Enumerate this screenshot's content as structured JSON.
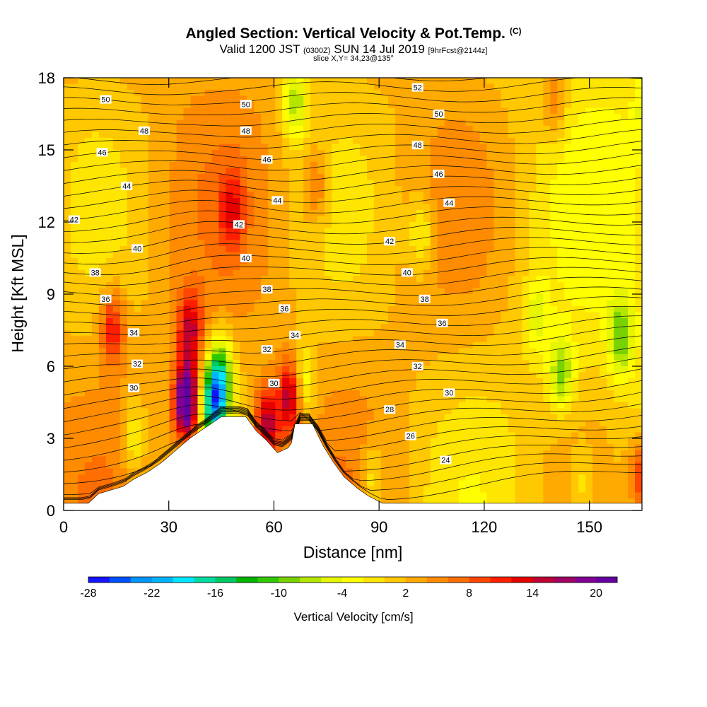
{
  "header": {
    "title": "Angled Section: Vertical Velocity & Pot.Temp.",
    "title_unit": "(C)",
    "valid_prefix": "Valid 1200 JST",
    "valid_utc": "(0300Z)",
    "valid_date": "SUN 14 Jul 2019",
    "forecast": "[9hrFcst@2144z]",
    "slice": "slice X,Y= 34,23@135°"
  },
  "colorbar": {
    "title": "Vertical Velocity [cm/s]",
    "tick_labels": [
      "-28",
      "-22",
      "-16",
      "-10",
      "-4",
      "2",
      "8",
      "14",
      "20"
    ],
    "colors": [
      "#1414ff",
      "#0050ff",
      "#0096ff",
      "#00b4ff",
      "#00e6ff",
      "#00dca0",
      "#00c864",
      "#00b400",
      "#32c800",
      "#78d200",
      "#b4e600",
      "#e6f500",
      "#ffff00",
      "#ffe600",
      "#ffc800",
      "#ffaa00",
      "#ff8c00",
      "#ff6e00",
      "#ff4600",
      "#ff1e00",
      "#e60000",
      "#be0032",
      "#a00064",
      "#820096",
      "#6400a0"
    ]
  },
  "chart_data": {
    "type": "heatmap",
    "title": "Angled Section: Vertical Velocity & Pot.Temp.",
    "xlabel": "Distance [nm]",
    "ylabel": "Height [Kft MSL]",
    "xlim": [
      0,
      165
    ],
    "ylim": [
      0,
      18
    ],
    "x_ticks": [
      0,
      30,
      60,
      90,
      120,
      150
    ],
    "y_ticks": [
      0,
      3,
      6,
      9,
      12,
      15,
      18
    ],
    "colorbar_range": [
      -28,
      24
    ],
    "terrain_kft": [
      [
        0,
        0.3
      ],
      [
        7,
        0.3
      ],
      [
        10,
        0.7
      ],
      [
        17,
        1.0
      ],
      [
        20,
        1.3
      ],
      [
        24,
        1.6
      ],
      [
        28,
        2.0
      ],
      [
        32,
        2.5
      ],
      [
        36,
        3.0
      ],
      [
        39,
        3.3
      ],
      [
        42,
        3.6
      ],
      [
        45,
        3.9
      ],
      [
        52,
        3.9
      ],
      [
        55,
        3.3
      ],
      [
        58,
        2.9
      ],
      [
        61,
        2.4
      ],
      [
        64,
        2.6
      ],
      [
        65,
        2.8
      ],
      [
        66,
        3.6
      ],
      [
        71,
        3.6
      ],
      [
        74,
        2.7
      ],
      [
        77,
        2.0
      ],
      [
        80,
        1.4
      ],
      [
        84,
        0.9
      ],
      [
        87,
        0.6
      ],
      [
        91,
        0.3
      ],
      [
        165,
        0.3
      ]
    ],
    "updraft_cores": [
      {
        "x": 35,
        "y": 4.5,
        "w": 24
      },
      {
        "x": 36,
        "y": 7.5,
        "w": 12
      },
      {
        "x": 58,
        "y": 3.6,
        "w": 14
      },
      {
        "x": 65,
        "y": 4.8,
        "w": 16
      },
      {
        "x": 14,
        "y": 7.6,
        "w": 10
      },
      {
        "x": 48,
        "y": 12.5,
        "w": 8
      },
      {
        "x": 72,
        "y": 13.5,
        "w": 6
      },
      {
        "x": 165,
        "y": 1.4,
        "w": 10
      },
      {
        "x": 140,
        "y": 17.0,
        "w": 6
      }
    ],
    "downdraft_cores": [
      {
        "x": 43,
        "y": 4.5,
        "w": -24
      },
      {
        "x": 45,
        "y": 5.8,
        "w": -12
      },
      {
        "x": 68,
        "y": 5.2,
        "w": -10
      },
      {
        "x": 66,
        "y": 17,
        "w": -10
      },
      {
        "x": 142,
        "y": 5.7,
        "w": -10
      },
      {
        "x": 159,
        "y": 7.2,
        "w": -10
      },
      {
        "x": 102,
        "y": 11.5,
        "w": -6
      },
      {
        "x": 135,
        "y": 8.0,
        "w": -6
      },
      {
        "x": 167,
        "y": 16.5,
        "w": -6
      },
      {
        "x": 20,
        "y": 3.0,
        "w": -6
      },
      {
        "x": 88,
        "y": 1.2,
        "w": -6
      },
      {
        "x": 148,
        "y": 1.0,
        "w": -4
      }
    ],
    "isotherm_labels": [
      {
        "x": 12,
        "y": 17.1,
        "text": "50"
      },
      {
        "x": 23,
        "y": 15.8,
        "text": "48"
      },
      {
        "x": 11,
        "y": 14.9,
        "text": "46"
      },
      {
        "x": 18,
        "y": 13.5,
        "text": "44"
      },
      {
        "x": 3,
        "y": 12.1,
        "text": "42"
      },
      {
        "x": 21,
        "y": 10.9,
        "text": "40"
      },
      {
        "x": 9,
        "y": 9.9,
        "text": "38"
      },
      {
        "x": 12,
        "y": 8.8,
        "text": "36"
      },
      {
        "x": 20,
        "y": 7.4,
        "text": "34"
      },
      {
        "x": 21,
        "y": 6.1,
        "text": "32"
      },
      {
        "x": 20,
        "y": 5.1,
        "text": "30"
      },
      {
        "x": 52,
        "y": 16.9,
        "text": "50"
      },
      {
        "x": 52,
        "y": 15.8,
        "text": "48"
      },
      {
        "x": 58,
        "y": 14.6,
        "text": "46"
      },
      {
        "x": 61,
        "y": 12.9,
        "text": "44"
      },
      {
        "x": 50,
        "y": 11.9,
        "text": "42"
      },
      {
        "x": 52,
        "y": 10.5,
        "text": "40"
      },
      {
        "x": 58,
        "y": 9.2,
        "text": "38"
      },
      {
        "x": 63,
        "y": 8.4,
        "text": "36"
      },
      {
        "x": 66,
        "y": 7.3,
        "text": "34"
      },
      {
        "x": 58,
        "y": 6.7,
        "text": "32"
      },
      {
        "x": 60,
        "y": 5.3,
        "text": "30"
      },
      {
        "x": 101,
        "y": 17.6,
        "text": "52"
      },
      {
        "x": 107,
        "y": 16.5,
        "text": "50"
      },
      {
        "x": 101,
        "y": 15.2,
        "text": "48"
      },
      {
        "x": 107,
        "y": 14.0,
        "text": "46"
      },
      {
        "x": 110,
        "y": 12.8,
        "text": "44"
      },
      {
        "x": 93,
        "y": 11.2,
        "text": "42"
      },
      {
        "x": 98,
        "y": 9.9,
        "text": "40"
      },
      {
        "x": 103,
        "y": 8.8,
        "text": "38"
      },
      {
        "x": 108,
        "y": 7.8,
        "text": "36"
      },
      {
        "x": 96,
        "y": 6.9,
        "text": "34"
      },
      {
        "x": 101,
        "y": 6.0,
        "text": "32"
      },
      {
        "x": 110,
        "y": 4.9,
        "text": "30"
      },
      {
        "x": 93,
        "y": 4.2,
        "text": "28"
      },
      {
        "x": 99,
        "y": 3.1,
        "text": "26"
      },
      {
        "x": 109,
        "y": 2.1,
        "text": "24"
      }
    ]
  }
}
